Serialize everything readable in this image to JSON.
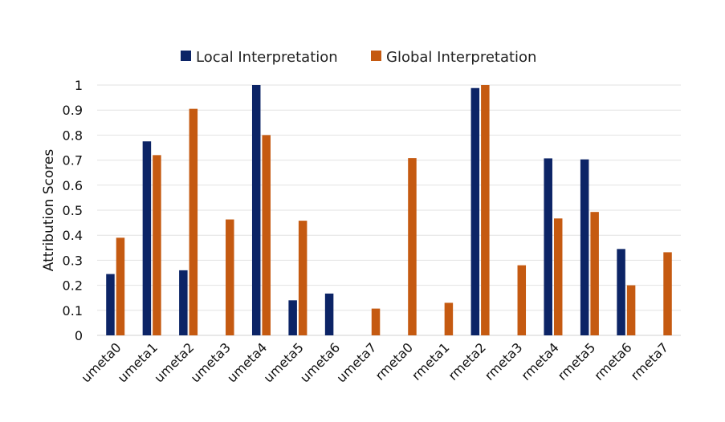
{
  "chart_data": {
    "type": "bar",
    "ylabel": "Attribution Scores",
    "xlabel": "",
    "ylim": [
      0,
      1
    ],
    "yticks": [
      0,
      0.1,
      0.2,
      0.3,
      0.4,
      0.5,
      0.6,
      0.7,
      0.8,
      0.9,
      1
    ],
    "ytick_labels": [
      "0",
      "0.1",
      "0.2",
      "0.3",
      "0.4",
      "0.5",
      "0.6",
      "0.7",
      "0.8",
      "0.9",
      "1"
    ],
    "grid": true,
    "legend_position": "top-center",
    "categories": [
      "umeta0",
      "umeta1",
      "umeta2",
      "umeta3",
      "umeta4",
      "umeta5",
      "umeta6",
      "umeta7",
      "rmeta0",
      "rmeta1",
      "rmeta2",
      "rmeta3",
      "rmeta4",
      "rmeta5",
      "rmeta6",
      "rmeta7"
    ],
    "series": [
      {
        "name": "Local Interpretation",
        "color": "#0c2466",
        "values": [
          0.245,
          0.775,
          0.26,
          0,
          1.0,
          0.14,
          0.167,
          0,
          0,
          0,
          0.988,
          0,
          0.707,
          0.703,
          0.345,
          0
        ]
      },
      {
        "name": "Global Interpretation",
        "color": "#c55a11",
        "values": [
          0.39,
          0.72,
          0.905,
          0.463,
          0.8,
          0.458,
          0,
          0.107,
          0.708,
          0.13,
          1.0,
          0.28,
          0.467,
          0.493,
          0.2,
          0.332
        ]
      }
    ]
  }
}
